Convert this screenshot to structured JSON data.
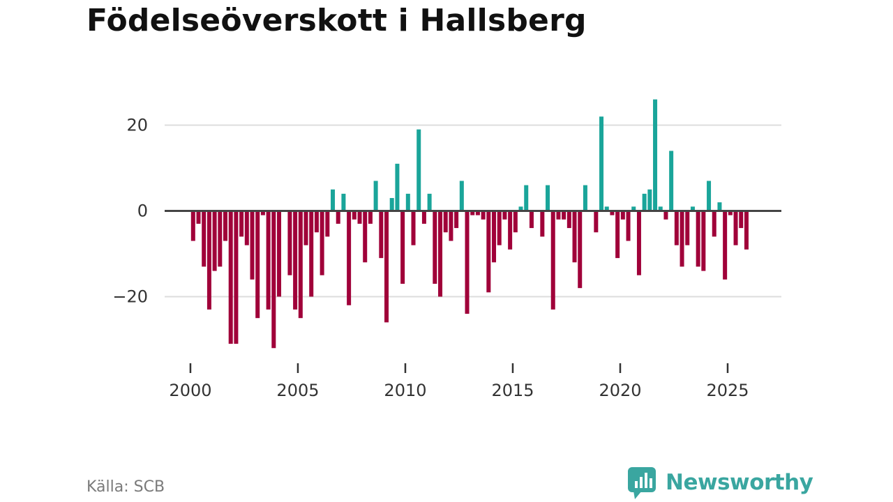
{
  "chart_data": {
    "type": "bar",
    "title": "Födelseöverskott i Hallsberg",
    "xlabel": "",
    "ylabel": "",
    "ylim": [
      -37,
      30
    ],
    "xlim": [
      1998.8,
      2027.5
    ],
    "yticks": [
      20,
      0,
      -20
    ],
    "ytick_labels": [
      "20",
      "0",
      "−20"
    ],
    "xticks": [
      2000,
      2005,
      2010,
      2015,
      2020,
      2025
    ],
    "xtick_labels": [
      "2000",
      "2005",
      "2010",
      "2015",
      "2020",
      "2025"
    ],
    "grid": true,
    "positive_color": "#1aa59a",
    "negative_color": "#a00039",
    "bar_step": 0.25,
    "start_x": 2000.125,
    "values": [
      -7,
      -3,
      -13,
      -23,
      -14,
      -13,
      -7,
      -31,
      -31,
      -6,
      -8,
      -16,
      -25,
      -1,
      -23,
      -32,
      -20,
      0,
      -15,
      -23,
      -25,
      -8,
      -20,
      -5,
      -15,
      -6,
      5,
      -3,
      4,
      -22,
      -2,
      -3,
      -12,
      -3,
      7,
      -11,
      -26,
      3,
      11,
      -17,
      4,
      -8,
      19,
      -3,
      4,
      -17,
      -20,
      -5,
      -7,
      -4,
      7,
      -24,
      -1,
      -1,
      -2,
      -19,
      -12,
      -8,
      -2,
      -9,
      -5,
      1,
      6,
      -4,
      0,
      -6,
      6,
      -23,
      -2,
      -2,
      -4,
      -12,
      -18,
      6,
      0,
      -5,
      22,
      1,
      -1,
      -11,
      -2,
      -7,
      1,
      -15,
      4,
      5,
      26,
      1,
      -2,
      14,
      -8,
      -13,
      -8,
      1,
      -13,
      -14,
      7,
      -6,
      2,
      -16,
      -1,
      -8,
      -4,
      -9
    ]
  },
  "source": "Källa: SCB",
  "brand": {
    "name": "Newsworthy",
    "color": "#3aa6a0",
    "icon": "bar-chart-speech-bubble-icon"
  }
}
